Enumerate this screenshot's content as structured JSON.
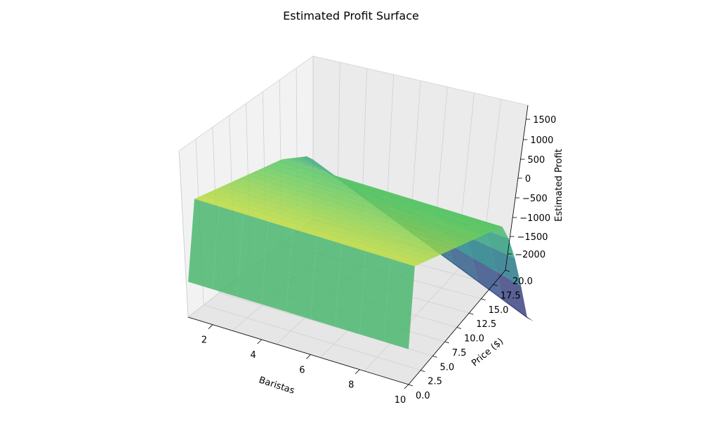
{
  "chart_data": {
    "type": "surface3d",
    "title": "Estimated Profit Surface",
    "xlabel": "Baristas",
    "ylabel": "Price ($)",
    "zlabel": "Estimated Profit",
    "xlim": [
      1,
      10
    ],
    "ylim": [
      0,
      20
    ],
    "zlim": [
      -2400,
      1700
    ],
    "x_ticks": [
      "2",
      "4",
      "6",
      "8",
      "10"
    ],
    "y_ticks": [
      "0.0",
      "2.5",
      "5.0",
      "7.5",
      "10.0",
      "12.5",
      "15.0",
      "17.5",
      "20.0"
    ],
    "z_ticks": [
      "1500",
      "1000",
      "500",
      "0",
      "−500",
      "−1000",
      "−1500",
      "−2000"
    ],
    "colormap": "viridis",
    "grid": true,
    "surface_profile": {
      "description_values_price": [
        0,
        1,
        2,
        3,
        4,
        5,
        6,
        7,
        8,
        9,
        10,
        11,
        12,
        13,
        14,
        15,
        16,
        17,
        18,
        19,
        20
      ],
      "estimated_profit_at_baristas_1": [
        -600,
        1300,
        1250,
        1200,
        1150,
        1100,
        1050,
        1000,
        950,
        900,
        850,
        800,
        750,
        700,
        650,
        600,
        500,
        400,
        300,
        200,
        0
      ],
      "estimated_profit_at_baristas_10": [
        -600,
        1300,
        1250,
        1200,
        1150,
        1100,
        1050,
        1000,
        950,
        900,
        850,
        800,
        750,
        700,
        650,
        600,
        200,
        -400,
        -1200,
        -2100,
        -2300
      ]
    }
  }
}
